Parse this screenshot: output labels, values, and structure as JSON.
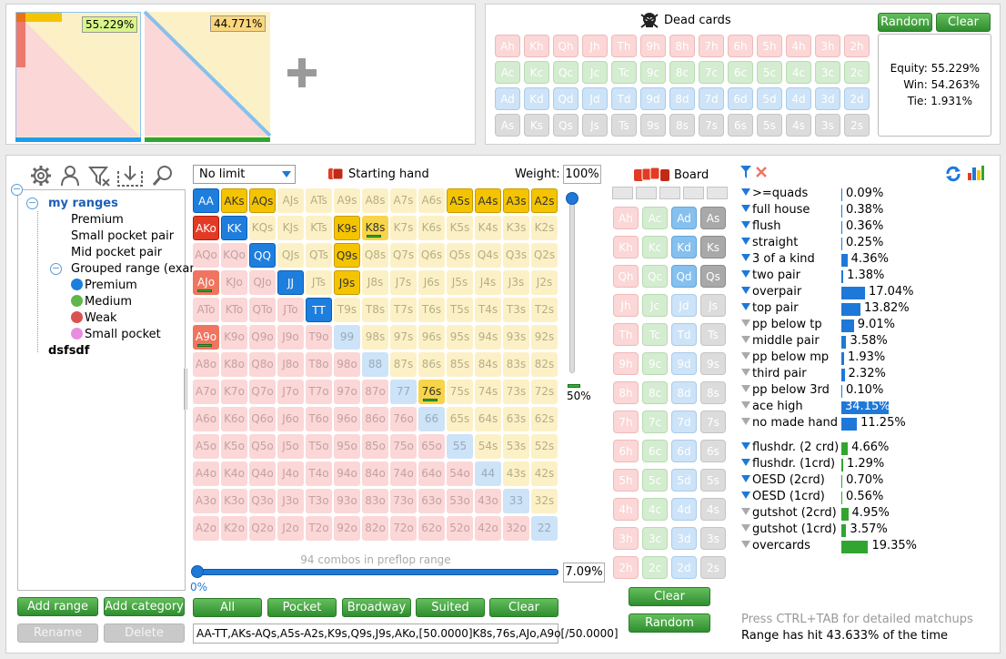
{
  "players": {
    "p1_equity": "55.229%",
    "p2_equity": "44.771%"
  },
  "dead_cards": {
    "title": "Dead cards",
    "random_label": "Random",
    "clear_label": "Clear",
    "rows": [
      [
        "Ah",
        "Kh",
        "Qh",
        "Jh",
        "Th",
        "9h",
        "8h",
        "7h",
        "6h",
        "5h",
        "4h",
        "3h",
        "2h"
      ],
      [
        "Ac",
        "Kc",
        "Qc",
        "Jc",
        "Tc",
        "9c",
        "8c",
        "7c",
        "6c",
        "5c",
        "4c",
        "3c",
        "2c"
      ],
      [
        "Ad",
        "Kd",
        "Qd",
        "Jd",
        "Td",
        "9d",
        "8d",
        "7d",
        "6d",
        "5d",
        "4d",
        "3d",
        "2d"
      ],
      [
        "As",
        "Ks",
        "Qs",
        "Js",
        "Ts",
        "9s",
        "8s",
        "7s",
        "6s",
        "5s",
        "4s",
        "3s",
        "2s"
      ]
    ]
  },
  "results": {
    "equity": "Equity: 55.229%",
    "win": "Win: 54.263%",
    "tie": "Tie: 1.931%"
  },
  "tree": {
    "root": "my ranges",
    "items": [
      {
        "label": "Premium",
        "level": 2
      },
      {
        "label": "Small pocket pair",
        "level": 2
      },
      {
        "label": "Mid pocket pair",
        "level": 2
      },
      {
        "label": "Grouped range (exar",
        "level": 2
      },
      {
        "label": "Premium",
        "level": 3,
        "color": "#1d7ede"
      },
      {
        "label": "Medium",
        "level": 3,
        "color": "#5cb84a"
      },
      {
        "label": "Weak",
        "level": 3,
        "color": "#d9534f"
      },
      {
        "label": "Small pocket",
        "level": 3,
        "color": "#e98de0"
      }
    ],
    "other": "dsfsdf"
  },
  "left_buttons": {
    "add_range": "Add range",
    "add_category": "Add category",
    "rename": "Rename",
    "delete": "Delete"
  },
  "matrix": {
    "limit_option": "No limit",
    "starting_hand": "Starting hand",
    "weight_label": "Weight:",
    "weight_value": "100%",
    "slider_pct": "50%",
    "combos": "94 combos in preflop range",
    "bottom_left": "0%",
    "range_pct": "7.09%",
    "range_text": "AA-TT,AKs-AQs,A5s-A2s,K9s,Q9s,J9s,AKo,[50.0000]K8s,76s,AJo,A9o[/50.0000]",
    "buttons": [
      "All",
      "Pocket",
      "Broadway",
      "Suited",
      "Clear"
    ]
  },
  "board": {
    "title": "Board",
    "clear_label": "Clear",
    "random_label": "Random"
  },
  "stats": {
    "rows": [
      {
        "label": ">=quads",
        "value": "0.09%",
        "pct": 0.09,
        "kind": "made",
        "active": true
      },
      {
        "label": "full house",
        "value": "0.38%",
        "pct": 0.38,
        "kind": "made",
        "active": true
      },
      {
        "label": "flush",
        "value": "0.36%",
        "pct": 0.36,
        "kind": "made",
        "active": true
      },
      {
        "label": "straight",
        "value": "0.25%",
        "pct": 0.25,
        "kind": "made",
        "active": true
      },
      {
        "label": "3 of a kind",
        "value": "4.36%",
        "pct": 4.36,
        "kind": "made",
        "active": true
      },
      {
        "label": "two pair",
        "value": "1.38%",
        "pct": 1.38,
        "kind": "made",
        "active": true
      },
      {
        "label": "overpair",
        "value": "17.04%",
        "pct": 17.04,
        "kind": "made",
        "active": true
      },
      {
        "label": "top pair",
        "value": "13.82%",
        "pct": 13.82,
        "kind": "made",
        "active": true
      },
      {
        "label": "pp below tp",
        "value": "9.01%",
        "pct": 9.01,
        "kind": "made",
        "active": false
      },
      {
        "label": "middle pair",
        "value": "3.58%",
        "pct": 3.58,
        "kind": "made",
        "active": false
      },
      {
        "label": "pp below mp",
        "value": "1.93%",
        "pct": 1.93,
        "kind": "made",
        "active": false
      },
      {
        "label": "third pair",
        "value": "2.32%",
        "pct": 2.32,
        "kind": "made",
        "active": false
      },
      {
        "label": "pp below 3rd",
        "value": "0.10%",
        "pct": 0.1,
        "kind": "made",
        "active": false
      },
      {
        "label": "ace high",
        "value": "34.15%",
        "pct": 34.15,
        "kind": "made",
        "active": false
      },
      {
        "label": "no made hand",
        "value": "11.25%",
        "pct": 11.25,
        "kind": "made",
        "active": false
      },
      {
        "label": "flushdr. (2 crd)",
        "value": "4.66%",
        "pct": 4.66,
        "kind": "draw",
        "active": true
      },
      {
        "label": "flushdr. (1crd)",
        "value": "1.29%",
        "pct": 1.29,
        "kind": "draw",
        "active": true
      },
      {
        "label": "OESD (2crd)",
        "value": "0.70%",
        "pct": 0.7,
        "kind": "draw",
        "active": true
      },
      {
        "label": "OESD (1crd)",
        "value": "0.56%",
        "pct": 0.56,
        "kind": "draw",
        "active": true
      },
      {
        "label": "gutshot (2crd)",
        "value": "4.95%",
        "pct": 4.95,
        "kind": "draw",
        "active": false
      },
      {
        "label": "gutshot (1crd)",
        "value": "3.57%",
        "pct": 3.57,
        "kind": "draw",
        "active": false
      },
      {
        "label": "overcards",
        "value": "19.35%",
        "pct": 19.35,
        "kind": "draw",
        "active": false
      }
    ],
    "hint": "Press CTRL+TAB for detailed matchups",
    "hit": "Range has hit 43.633% of the time"
  },
  "colors": {
    "accent": "#1e78d8",
    "green": "#2f8e2f",
    "red": "#e33a24",
    "yellow": "#f5c400"
  }
}
